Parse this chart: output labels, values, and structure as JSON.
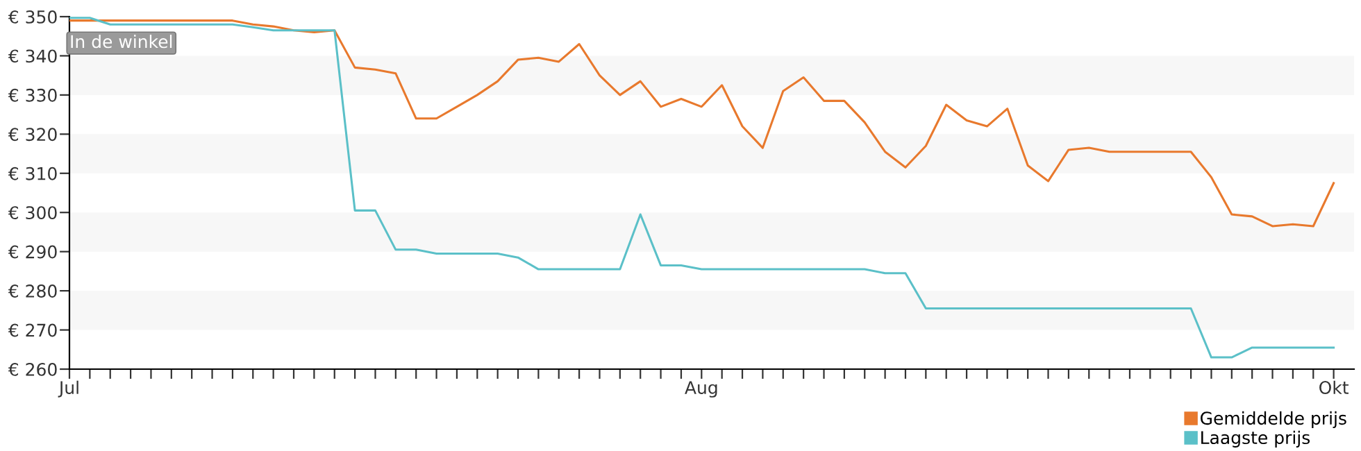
{
  "chart_data": {
    "type": "line",
    "categories": [
      "Jul",
      null,
      null,
      null,
      null,
      null,
      null,
      null,
      null,
      null,
      null,
      null,
      null,
      null,
      null,
      null,
      null,
      null,
      null,
      null,
      null,
      null,
      null,
      null,
      null,
      null,
      null,
      null,
      null,
      null,
      null,
      "Aug",
      null,
      null,
      null,
      null,
      null,
      null,
      null,
      null,
      null,
      null,
      null,
      null,
      null,
      null,
      null,
      null,
      null,
      null,
      null,
      null,
      null,
      null,
      null,
      null,
      null,
      null,
      null,
      null,
      null,
      null,
      "Okt"
    ],
    "series": [
      {
        "name": "Gemiddelde prijs",
        "color": "#e8792d",
        "values": [
          349,
          349,
          349,
          349,
          349,
          349,
          349,
          349,
          349,
          348,
          347.5,
          346.5,
          346,
          346.5,
          337,
          336.5,
          335.5,
          324,
          324,
          327,
          330,
          333.5,
          339,
          339.5,
          338.5,
          343,
          335,
          330,
          333.5,
          327,
          329,
          327,
          332.5,
          322,
          316.5,
          331,
          334.5,
          328.5,
          328.5,
          323,
          315.5,
          311.5,
          317,
          327.5,
          323.5,
          322,
          326.5,
          312,
          308,
          316,
          316.5,
          315.5,
          315.5,
          315.5,
          315.5,
          315.5,
          309,
          299.5,
          299,
          296.5,
          297,
          296.5,
          307.5
        ]
      },
      {
        "name": "Laagste prijs",
        "color": "#5bc0c8",
        "values": [
          349.7,
          349.7,
          348,
          348,
          348,
          348,
          348,
          348,
          348,
          347.3,
          346.5,
          346.5,
          346.5,
          346.5,
          300.5,
          300.5,
          290.5,
          290.5,
          289.5,
          289.5,
          289.5,
          289.5,
          288.5,
          285.5,
          285.5,
          285.5,
          285.5,
          285.5,
          299.5,
          286.5,
          286.5,
          285.5,
          285.5,
          285.5,
          285.5,
          285.5,
          285.5,
          285.5,
          285.5,
          285.5,
          284.5,
          284.5,
          275.5,
          275.5,
          275.5,
          275.5,
          275.5,
          275.5,
          275.5,
          275.5,
          275.5,
          275.5,
          275.5,
          275.5,
          275.5,
          275.5,
          263,
          263,
          265.5,
          265.5,
          265.5,
          265.5,
          265.5
        ]
      }
    ],
    "ylim": [
      260,
      350
    ],
    "yticks": [
      {
        "value": 260,
        "label": "€ 260"
      },
      {
        "value": 270,
        "label": "€ 270"
      },
      {
        "value": 280,
        "label": "€ 280"
      },
      {
        "value": 290,
        "label": "€ 290"
      },
      {
        "value": 300,
        "label": "€ 300"
      },
      {
        "value": 310,
        "label": "€ 310"
      },
      {
        "value": 320,
        "label": "€ 320"
      },
      {
        "value": 330,
        "label": "€ 330"
      },
      {
        "value": 340,
        "label": "€ 340"
      },
      {
        "value": 350,
        "label": "€ 350"
      }
    ],
    "annotations": [
      "In de winkel"
    ],
    "bands": [
      {
        "axis": "y",
        "from": 270,
        "to": 280,
        "color": "#f7f7f7"
      },
      {
        "axis": "y",
        "from": 290,
        "to": 300,
        "color": "#f7f7f7"
      },
      {
        "axis": "y",
        "from": 310,
        "to": 320,
        "color": "#f7f7f7"
      },
      {
        "axis": "y",
        "from": 330,
        "to": 340,
        "color": "#f7f7f7"
      }
    ],
    "legend": "bottom right",
    "marker": "none",
    "line_style": "solid"
  }
}
